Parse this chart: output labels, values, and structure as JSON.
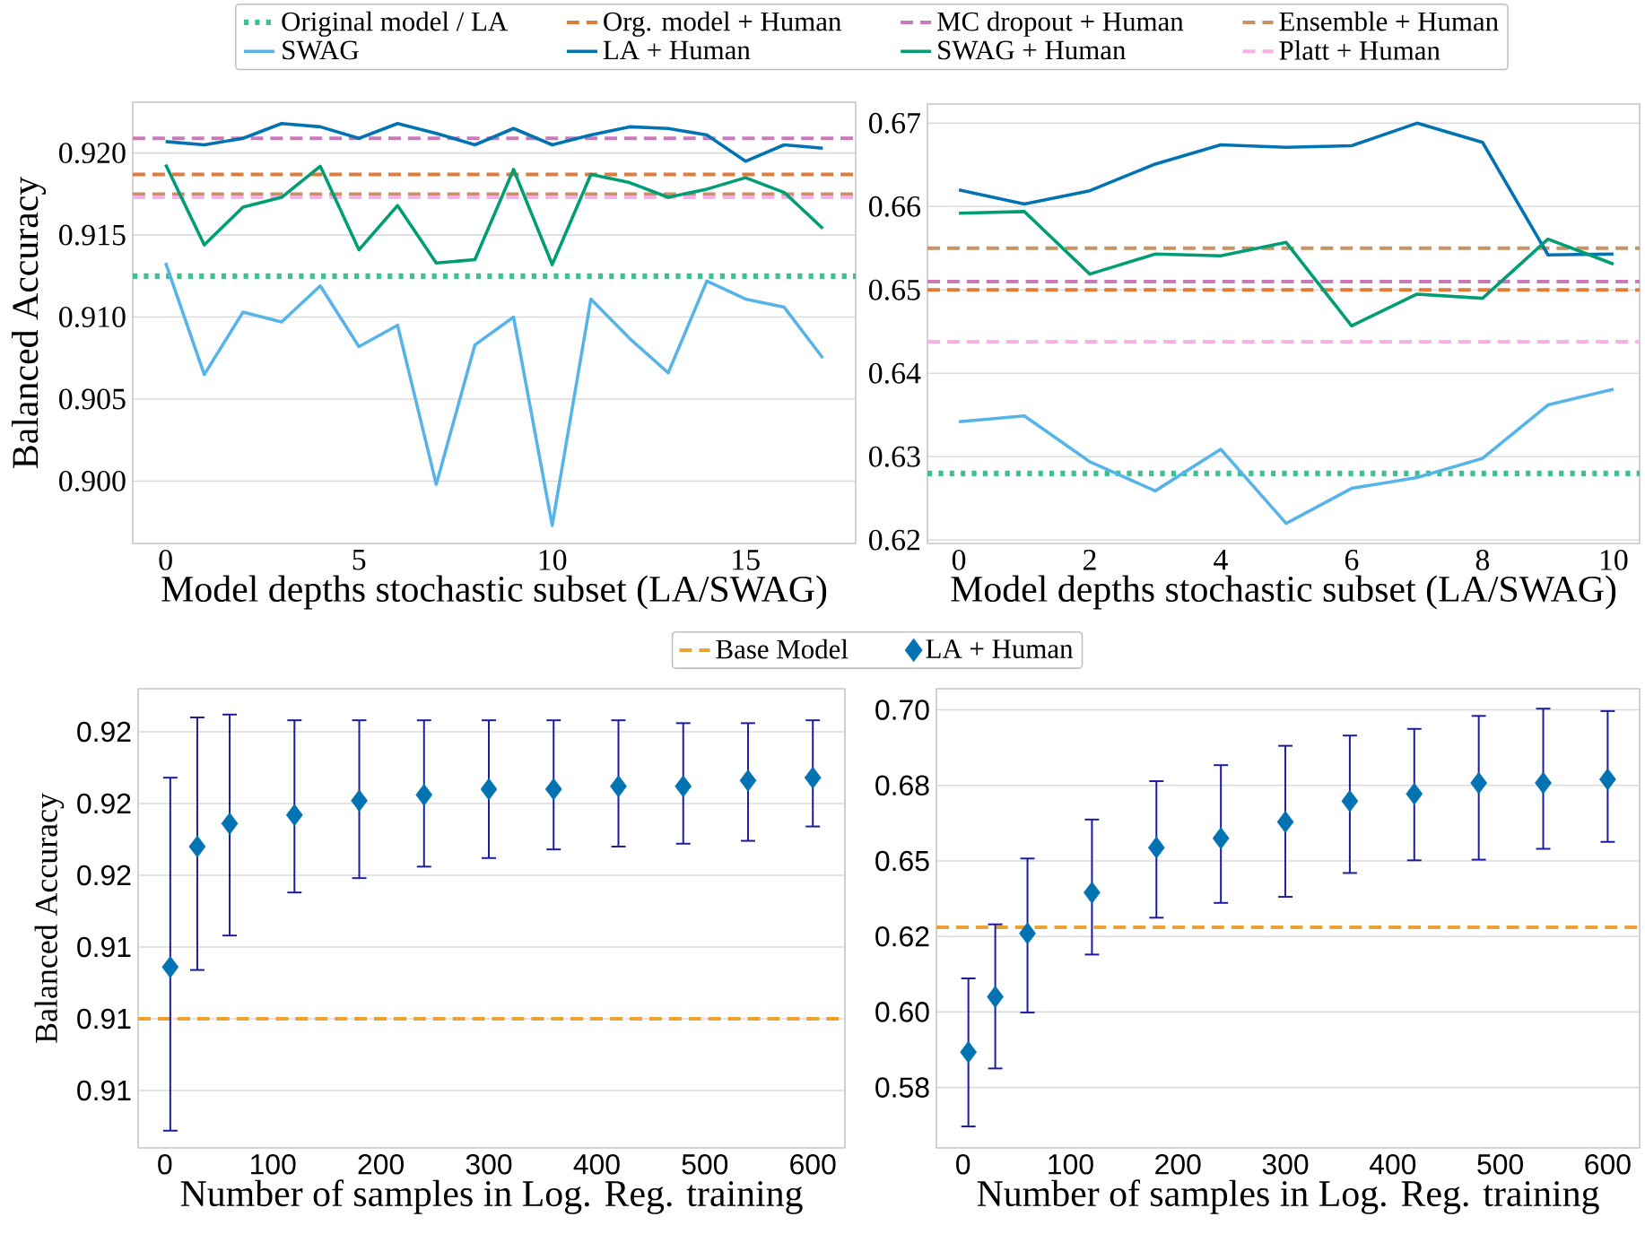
{
  "chart_data": [
    {
      "type": "line",
      "xlabel": "Model depths stochastic subset (LA/SWAG)",
      "ylabel": "Balanced Accuracy",
      "xlim": [
        -0.85,
        17.85
      ],
      "ylim": [
        0.8962,
        0.9231
      ],
      "xticks": [
        0,
        5,
        10,
        15
      ],
      "yticks": [
        {
          "value": 0.9,
          "label": "0.900"
        },
        {
          "value": 0.905,
          "label": "0.905"
        },
        {
          "value": 0.91,
          "label": "0.910"
        },
        {
          "value": 0.915,
          "label": "0.915"
        },
        {
          "value": 0.92,
          "label": "0.920"
        }
      ],
      "grid": "y",
      "legend": "top",
      "x": [
        0,
        1,
        2,
        3,
        4,
        5,
        6,
        7,
        8,
        9,
        10,
        11,
        12,
        13,
        14,
        15,
        16,
        17
      ],
      "series": [
        {
          "name": "SWAG",
          "color": "#56b4e9",
          "values": [
            0.9133,
            0.9065,
            0.9103,
            0.9097,
            0.9119,
            0.9082,
            0.9095,
            0.8998,
            0.9083,
            0.91,
            0.8973,
            0.9111,
            0.9087,
            0.9066,
            0.9122,
            0.9111,
            0.9106,
            0.9075
          ]
        },
        {
          "name": "LA + Human",
          "color": "#0173b2",
          "values": [
            0.9207,
            0.9205,
            0.9209,
            0.9218,
            0.9216,
            0.9209,
            0.9218,
            0.9212,
            0.9205,
            0.9215,
            0.9205,
            0.9211,
            0.9216,
            0.9215,
            0.9211,
            0.9195,
            0.9205,
            0.9203
          ]
        },
        {
          "name": "SWAG + Human",
          "color": "#029e73",
          "values": [
            0.9193,
            0.9144,
            0.9167,
            0.9173,
            0.9192,
            0.9141,
            0.9168,
            0.9133,
            0.9135,
            0.919,
            0.9132,
            0.9187,
            0.9182,
            0.9173,
            0.9178,
            0.9185,
            0.9176,
            0.9154
          ]
        }
      ],
      "ref_lines": [
        {
          "axis": "y",
          "value": 0.9125,
          "label": "Original model / LA",
          "color": "#40c090",
          "line_style": "dotted"
        },
        {
          "axis": "y",
          "value": 0.9187,
          "label": "Org. model + Human",
          "color": "#e07b39",
          "line_style": "dashed"
        },
        {
          "axis": "y",
          "value": 0.9209,
          "label": "MC dropout + Human",
          "color": "#cc78bc",
          "line_style": "dashed"
        },
        {
          "axis": "y",
          "value": 0.9175,
          "label": "Ensemble + Human",
          "color": "#ca9161",
          "line_style": "dashed"
        },
        {
          "axis": "y",
          "value": 0.9173,
          "label": "Platt + Human",
          "color": "#fbafe4",
          "line_style": "dashed"
        }
      ]
    },
    {
      "type": "line",
      "xlabel": "Model depths stochastic subset (LA/SWAG)",
      "xlim": [
        -0.48,
        10.4
      ],
      "ylim": [
        0.6196,
        0.6723
      ],
      "xticks": [
        0,
        2,
        4,
        6,
        8,
        10
      ],
      "yticks": [
        0.62,
        0.63,
        0.64,
        0.65,
        0.66,
        0.67
      ],
      "grid": "y",
      "x": [
        0,
        1,
        2,
        3,
        4,
        5,
        6,
        7,
        8,
        9,
        10
      ],
      "series": [
        {
          "color": "#56b4e9",
          "values": [
            0.6342,
            0.6349,
            0.6294,
            0.6259,
            0.6309,
            0.622,
            0.6262,
            0.6275,
            0.6298,
            0.6362,
            0.6381
          ]
        },
        {
          "color": "#0173b2",
          "values": [
            0.662,
            0.6603,
            0.6619,
            0.6651,
            0.6674,
            0.6671,
            0.6673,
            0.67,
            0.6677,
            0.6542,
            0.6543
          ]
        },
        {
          "color": "#029e73",
          "values": [
            0.6592,
            0.6594,
            0.6519,
            0.6543,
            0.6541,
            0.6557,
            0.6457,
            0.6495,
            0.649,
            0.6561,
            0.6531
          ]
        }
      ],
      "ref_lines": [
        {
          "axis": "y",
          "value": 0.628,
          "color": "#40c090",
          "line_style": "dotted"
        },
        {
          "axis": "y",
          "value": 0.65,
          "color": "#e07b39",
          "line_style": "dashed"
        },
        {
          "axis": "y",
          "value": 0.651,
          "color": "#cc78bc",
          "line_style": "dashed"
        },
        {
          "axis": "y",
          "value": 0.655,
          "color": "#ca9161",
          "line_style": "dashed"
        },
        {
          "axis": "y",
          "value": 0.6438,
          "color": "#fbafe4",
          "line_style": "dashed"
        }
      ]
    },
    {
      "type": "scatter",
      "xlabel": "Number of samples in Log. Reg. training",
      "ylabel": "Balanced Accuracy",
      "xlim": [
        -24.75,
        629.75
      ],
      "ylim": [
        0.908,
        0.924
      ],
      "xticks": [
        0,
        100,
        200,
        300,
        400,
        500,
        600
      ],
      "yticks": [
        0.91,
        {
          "value": 0.9125,
          "label": "0.91"
        },
        {
          "value": 0.915,
          "label": "0.91"
        },
        {
          "value": 0.9175,
          "label": "0.92"
        },
        0.92,
        {
          "value": 0.9225,
          "label": "0.92"
        }
      ],
      "grid": "y",
      "legend": "top",
      "marker": "diamond",
      "x": [
        5,
        30,
        60,
        120,
        180,
        240,
        300,
        360,
        420,
        480,
        540,
        600
      ],
      "series": [
        {
          "name": "LA + Human",
          "color": "#0173b2",
          "values": [
            0.9143,
            0.9185,
            0.9193,
            0.9196,
            0.9201,
            0.9203,
            0.9205,
            0.9205,
            0.9206,
            0.9206,
            0.9208,
            0.9209
          ],
          "errors": [
            [
              0.9086,
              0.9209
            ],
            [
              0.9142,
              0.923
            ],
            [
              0.9154,
              0.9231
            ],
            [
              0.9169,
              0.9229
            ],
            [
              0.9174,
              0.9229
            ],
            [
              0.9178,
              0.9229
            ],
            [
              0.9181,
              0.9229
            ],
            [
              0.9184,
              0.9229
            ],
            [
              0.9185,
              0.9229
            ],
            [
              0.9186,
              0.9228
            ],
            [
              0.9187,
              0.9228
            ],
            [
              0.9192,
              0.9229
            ]
          ]
        }
      ],
      "ref_lines": [
        {
          "axis": "y",
          "value": 0.9125,
          "label": "Base Model",
          "color": "#eba134",
          "line_style": "dashed"
        }
      ]
    },
    {
      "type": "scatter",
      "xlabel": "Number of samples in Log. Reg. training",
      "xlim": [
        -24.75,
        629.75
      ],
      "ylim": [
        0.555,
        0.707
      ],
      "xticks": [
        0,
        100,
        200,
        300,
        400,
        500,
        600
      ],
      "yticks": [
        {
          "value": 0.575,
          "label": "0.58"
        },
        {
          "value": 0.6,
          "label": "0.60"
        },
        {
          "value": 0.625,
          "label": "0.62"
        },
        0.65,
        {
          "value": 0.675,
          "label": "0.68"
        },
        {
          "value": 0.7,
          "label": "0.70"
        }
      ],
      "grid": "y",
      "marker": "diamond",
      "x": [
        5,
        30,
        60,
        120,
        180,
        240,
        300,
        360,
        420,
        480,
        540,
        600
      ],
      "series": [
        {
          "color": "#0173b2",
          "values": [
            0.5867,
            0.605,
            0.626,
            0.6395,
            0.6544,
            0.6575,
            0.6629,
            0.6698,
            0.6722,
            0.6758,
            0.6758,
            0.677
          ],
          "errors": [
            [
              0.5621,
              0.6111
            ],
            [
              0.5813,
              0.629
            ],
            [
              0.5998,
              0.6508
            ],
            [
              0.619,
              0.6637
            ],
            [
              0.6312,
              0.6764
            ],
            [
              0.6361,
              0.6817
            ],
            [
              0.6381,
              0.6881
            ],
            [
              0.646,
              0.6915
            ],
            [
              0.6502,
              0.6937
            ],
            [
              0.6504,
              0.698
            ],
            [
              0.654,
              0.7004
            ],
            [
              0.6563,
              0.6996
            ]
          ]
        }
      ],
      "ref_lines": [
        {
          "axis": "y",
          "value": 0.628,
          "color": "#eba134",
          "line_style": "dashed"
        }
      ]
    }
  ]
}
